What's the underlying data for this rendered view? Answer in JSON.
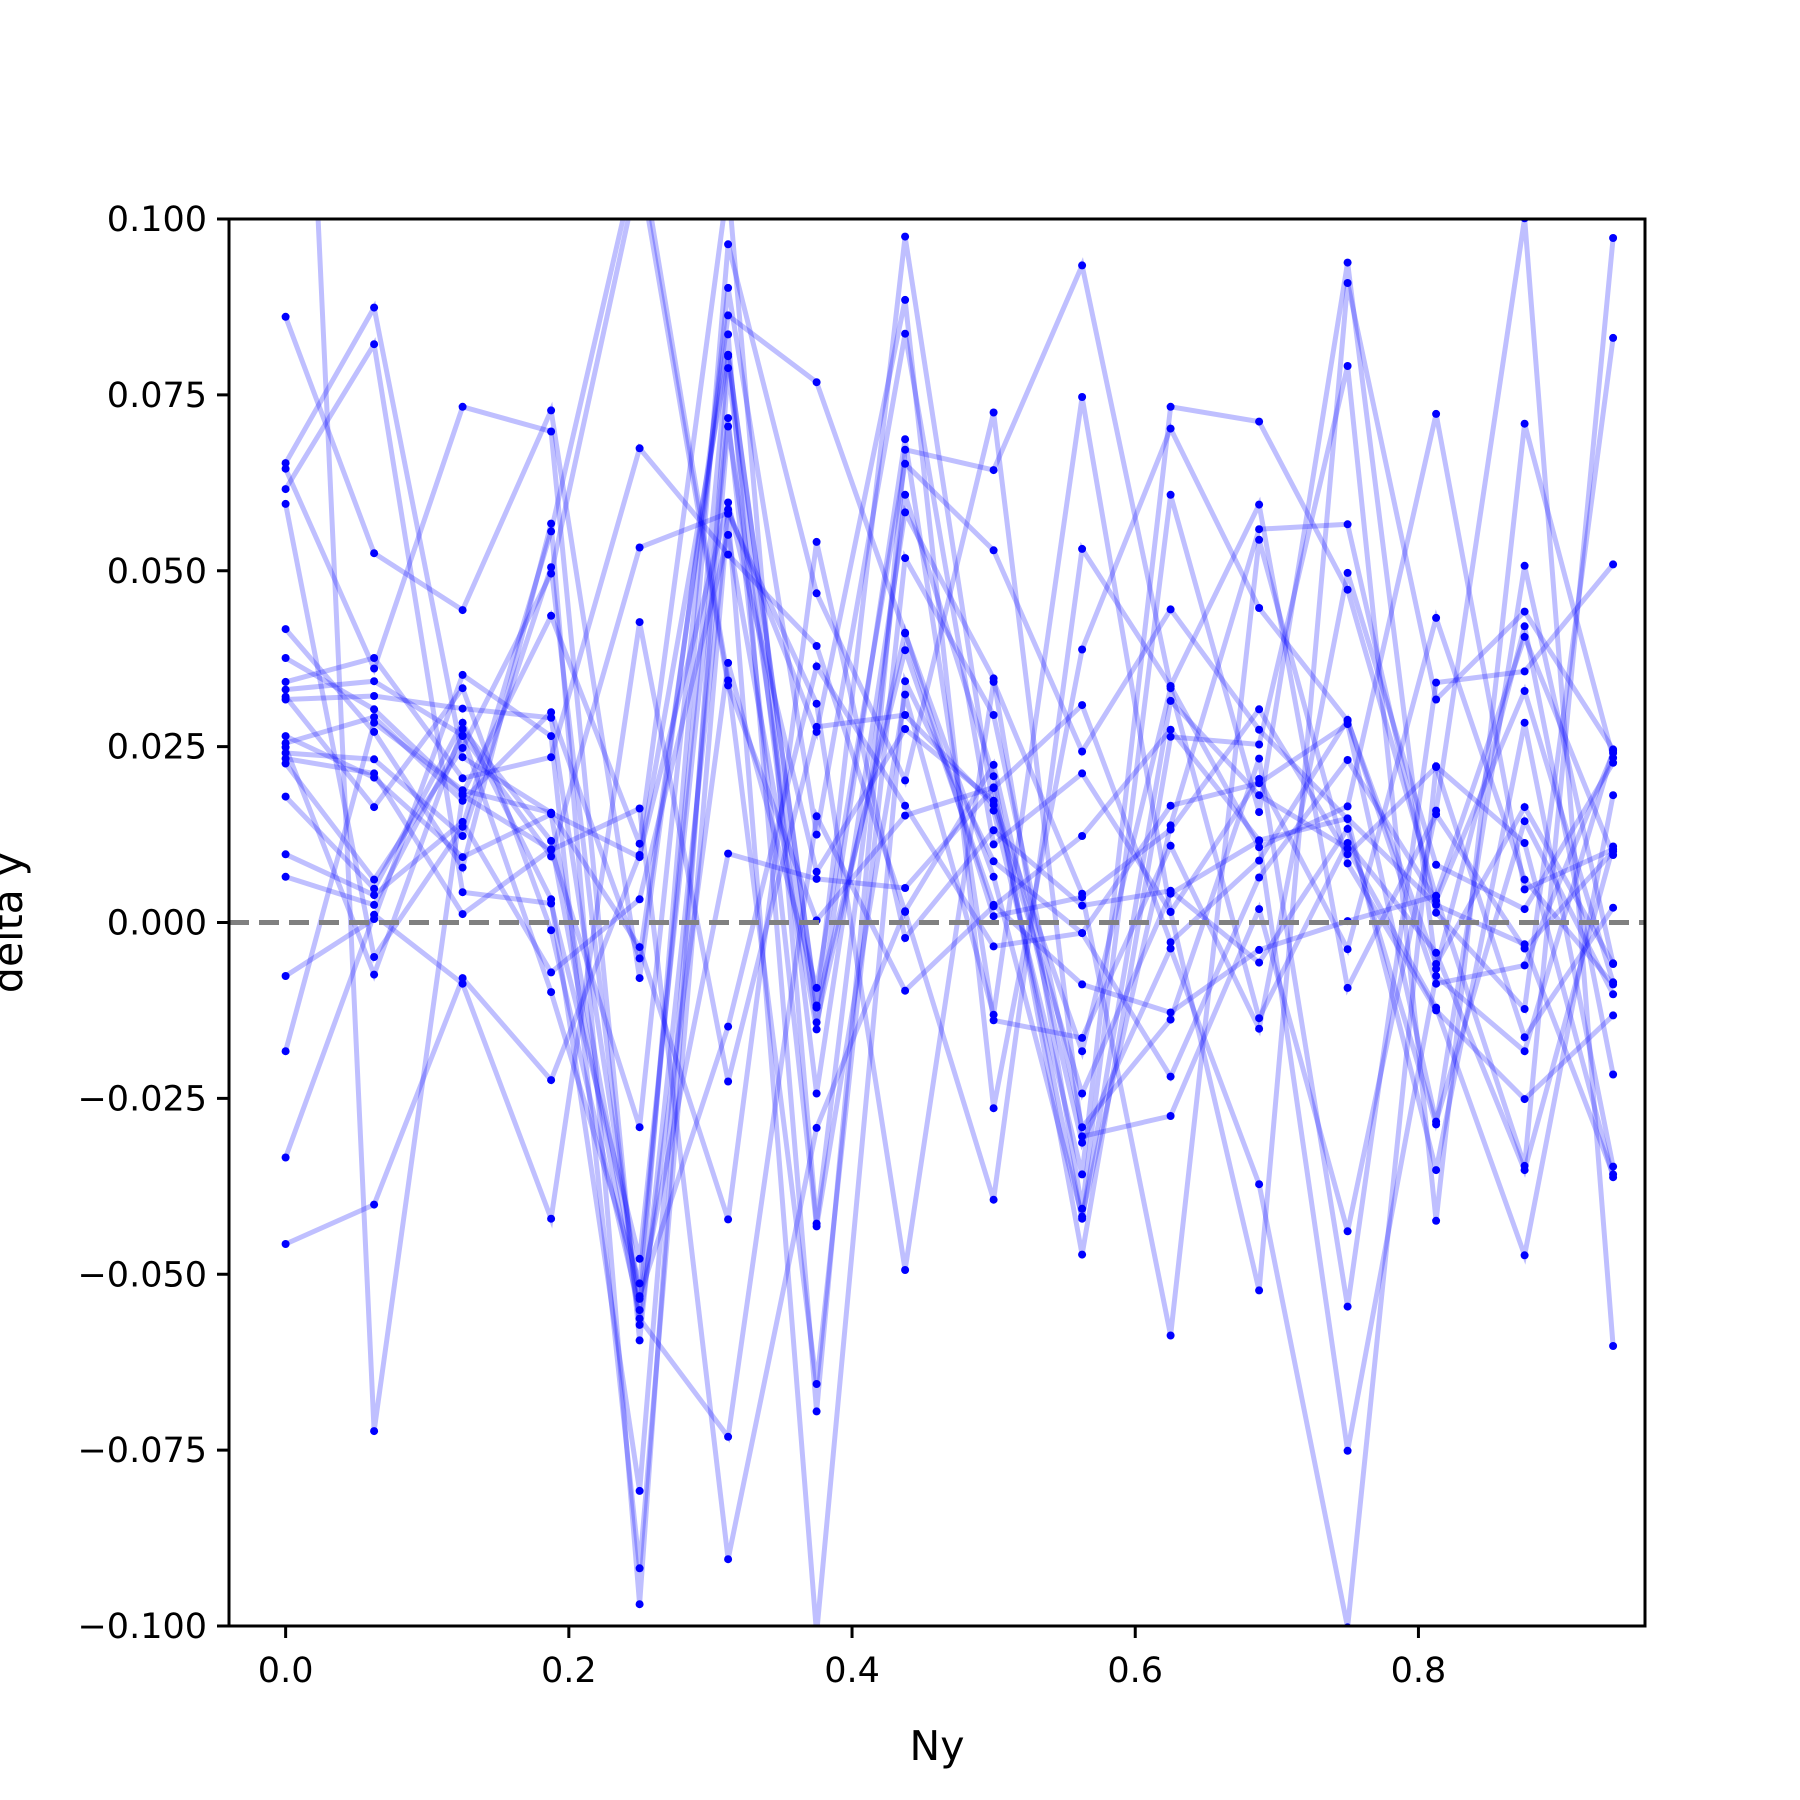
{
  "chart_data": {
    "type": "line",
    "title": "",
    "xlabel": "Ny",
    "ylabel": "delta y",
    "xlim": [
      -0.04,
      0.96
    ],
    "ylim": [
      -0.1,
      0.1
    ],
    "xticks": [
      0.0,
      0.2,
      0.4,
      0.6,
      0.8
    ],
    "xtick_labels": [
      "0.0",
      "0.2",
      "0.4",
      "0.6",
      "0.8"
    ],
    "yticks": [
      -0.1,
      -0.075,
      -0.05,
      -0.025,
      0.0,
      0.025,
      0.05,
      0.075,
      0.1
    ],
    "ytick_labels": [
      "−0.100",
      "−0.075",
      "−0.050",
      "−0.025",
      "0.000",
      "0.025",
      "0.050",
      "0.075",
      "0.100"
    ],
    "reference_line": {
      "y": 0.0,
      "style": "dashed",
      "color": "#808080"
    },
    "series_color": "#0000ff",
    "line_alpha": 0.25,
    "grid": false,
    "x": [
      0.0,
      0.0625,
      0.125,
      0.1875,
      0.25,
      0.3125,
      0.375,
      0.4375,
      0.5,
      0.5625,
      0.625,
      0.6875,
      0.75,
      0.8125,
      0.875,
      0.9375
    ],
    "series": [
      {
        "values": [
          0.0861,
          0.0525,
          0.0444,
          0.0728,
          -0.0079,
          0.0863,
          0.0768,
          0.0411,
          0.0065,
          -0.0418,
          0.0138,
          0.0559,
          0.0566,
          0.0014,
          -0.0123,
          0.0831
        ]
      },
      {
        "values": [
          0.0653,
          0.0874,
          0.0235,
          0.0156,
          0.0093,
          0.0805,
          -0.0121,
          0.0975,
          0.0159,
          -0.0358,
          0.0733,
          0.0712,
          0.0473,
          0.0037,
          -0.0346,
          0.0973
        ]
      },
      {
        "values": [
          0.0616,
          0.0822,
          0.0043,
          0.0027,
          -0.0478,
          0.0717,
          -0.0432,
          0.0324,
          -0.0131,
          0.0747,
          0.0015,
          -0.0523,
          0.0909,
          0.0317,
          0.0442,
          0.0246
        ]
      },
      {
        "values": [
          0.0645,
          0.0361,
          0.0733,
          0.0698,
          -0.0594,
          0.0587,
          0.0271,
          0.0885,
          -0.0264,
          0.0388,
          0.0702,
          0.0447,
          0.0287,
          -0.0059,
          0.0164,
          -0.0059
        ]
      },
      {
        "values": [
          0.0595,
          -0.0049,
          0.0136,
          0.0556,
          0.1102,
          0.0344,
          -0.0656,
          0.0518,
          0.0295,
          -0.0291,
          -0.0138,
          0.0233,
          -0.0546,
          0.0341,
          0.0357,
          0.0509
        ]
      },
      {
        "values": [
          0.0417,
          0.0271,
          0.0078,
          0.0567,
          -0.0969,
          0.0788,
          -0.0243,
          0.0583,
          0.0347,
          -0.0407,
          0.0608,
          0.0157,
          0.0938,
          -0.0066,
          0.0421,
          -0.0216
        ]
      },
      {
        "values": [
          0.0376,
          0.0303,
          0.0183,
          0.0436,
          0.0112,
          0.1051,
          -0.0428,
          0.0608,
          0.0208,
          -0.0472,
          0.0264,
          0.0253,
          0.0791,
          -0.0424,
          0.0709,
          0.0234
        ]
      },
      {
        "values": [
          0.0342,
          0.0376,
          0.0205,
          0.0235,
          0.0674,
          0.0523,
          0.0393,
          0.0015,
          -0.0394,
          0.0531,
          0.0336,
          0.0107,
          0.0165,
          0.0723,
          0.0047,
          0.0104
        ]
      },
      {
        "values": [
          0.0331,
          0.0343,
          0.0266,
          0.0094,
          0.0533,
          0.0582,
          0.0311,
          -0.0494,
          0.0342,
          0.0041,
          -0.0587,
          0.0544,
          0.0084,
          -0.0125,
          -0.0251,
          -0.0132
        ]
      },
      {
        "values": [
          0.0321,
          0.0164,
          0.0333,
          -0.0011,
          -0.0551,
          0.0964,
          0.0468,
          0.0202,
          0.0725,
          -0.0304,
          -0.0275,
          0.0019,
          -0.0439,
          0.0159,
          0.1001,
          -0.0602
        ]
      },
      {
        "values": [
          0.0255,
          0.0292,
          0.0173,
          0.0299,
          -0.0051,
          0.0836,
          -0.0695,
          0.0672,
          0.0643,
          0.0934,
          0.0336,
          0.0594,
          -0.0093,
          0.0154,
          -0.0037,
          0.0101
        ]
      },
      {
        "values": [
          0.0241,
          0.0232,
          0.0123,
          0.0505,
          -0.0572,
          0.0369,
          -0.0093,
          0.0652,
          0.0529,
          0.0243,
          0.0445,
          0.0274,
          0.0147,
          -0.0352,
          0.0284,
          -0.0347
        ]
      },
      {
        "values": [
          0.0233,
          0.0212,
          0.0012,
          0.0104,
          -0.0291,
          0.0902,
          0.0125,
          0.0837,
          0.0111,
          0.0212,
          0.0015,
          0.0204,
          -0.0038,
          0.0433,
          0.0061,
          -0.0088
        ]
      },
      {
        "values": [
          0.0226,
          0.0061,
          0.0248,
          0.0496,
          0.1074,
          0.0337,
          0.0003,
          0.0152,
          0.0192,
          -0.0421,
          0.0315,
          0.0181,
          0.0105,
          -0.0121,
          -0.0473,
          0.0181
        ]
      },
      {
        "values": [
          0.0179,
          0.0048,
          0.0284,
          0.0033,
          -0.0808,
          0.0705,
          -0.0142,
          0.0412,
          0.0009,
          0.0036,
          0.0132,
          0.0303,
          0.0097,
          0.0221,
          -0.0163,
          0.0021
        ]
      },
      {
        "values": [
          0.0097,
          0.0039,
          0.0143,
          -0.0071,
          0.0033,
          0.0551,
          -0.0152,
          0.0687,
          -0.0139,
          -0.0164,
          0.0109,
          -0.0151,
          0.0497,
          0.0082,
          0.0019,
          0.0227
        ]
      },
      {
        "values": [
          0.0065,
          0.0025,
          0.0265,
          -0.0099,
          -0.0513,
          0.0807,
          -0.0118,
          0.0387,
          0.0025,
          -0.0088,
          -0.0128,
          -0.0039,
          0.0002,
          0.0038,
          0.0406,
          0.0096
        ]
      },
      {
        "values": [
          -0.0076,
          0.0005,
          0.0352,
          0.0265,
          -0.0918,
          0.0581,
          -0.1011,
          0.0343,
          0.0087,
          -0.0015,
          -0.0219,
          0.0064,
          0.0231,
          0.0031,
          0.0329,
          -0.0085
        ]
      },
      {
        "values": [
          -0.0183,
          0.0284,
          0.0188,
          0.0156,
          -0.0035,
          -0.0422,
          0.0541,
          -0.0022,
          0.0131,
          0.0024,
          0.0045,
          -0.0057,
          0.0133,
          -0.0287,
          0.0507,
          -0.0058
        ]
      },
      {
        "values": [
          -0.0334,
          0.0011,
          -0.0087,
          -0.0421,
          0.0427,
          -0.0226,
          0.0278,
          0.0295,
          0.0167,
          -0.0243,
          0.0041,
          0.0116,
          -0.0751,
          -0.0076,
          -0.0183,
          0.0244
        ]
      },
      {
        "values": [
          -0.0457,
          -0.0401,
          -0.0079,
          -0.0224,
          0.0096,
          0.0597,
          0.0072,
          0.0275,
          0.0173,
          -0.0183,
          0.0333,
          -0.0136,
          0.0113,
          -0.0043,
          -0.0352,
          0.0108
        ]
      },
      {
        "values": [
          0.2,
          -0.0723,
          0.0181,
          0.0103,
          0.0162,
          -0.0905,
          -0.0292,
          0.0016,
          0.0224,
          -0.0313,
          -0.0037,
          -0.0372,
          -0.1002,
          0.0222,
          0.0113,
          -0.0362
        ]
      },
      {
        "values": [
          0.0317,
          0.0322,
          0.0304,
          0.0291,
          -0.0531,
          -0.0148,
          0.0364,
          0.0166,
          -0.0034,
          -0.0015,
          0.0166,
          0.0198,
          0.0282,
          -0.0283,
          0.0144,
          -0.0102
        ]
      },
      {
        "values": [
          0.0265,
          0.0206,
          0.0093,
          0.0154,
          -0.0535,
          0.0098,
          0.0062,
          0.0049,
          0.0191,
          0.0309,
          -0.0028,
          0.0088,
          0.0288,
          -0.0087,
          -0.0061,
          0.0241
        ]
      },
      {
        "values": [
          0.0249,
          -0.0074,
          0.0275,
          0.0116,
          -0.0563,
          -0.0731,
          0.0151,
          -0.0097,
          0.0023,
          0.0123,
          0.0274,
          0.0117,
          0.0148,
          0.0025,
          -0.0031,
          -0.0358
        ]
      }
    ]
  }
}
